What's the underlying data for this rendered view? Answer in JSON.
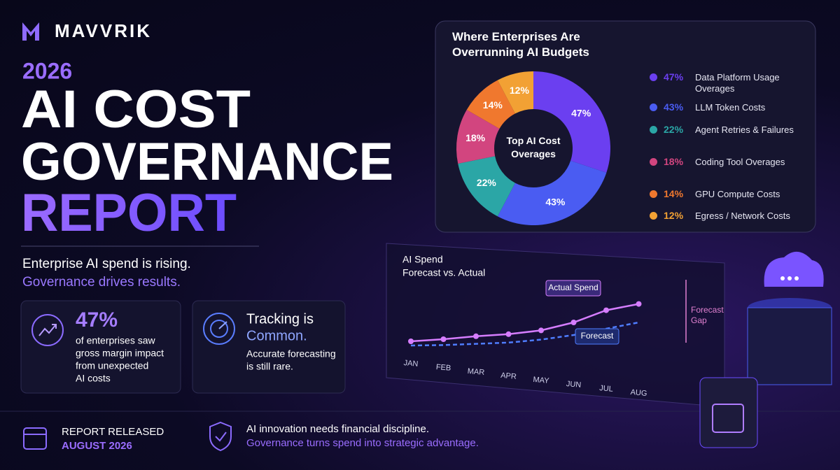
{
  "brand": "MAVVRIK",
  "hero": {
    "year": "2026",
    "title_lines": [
      "AI COST",
      "GOVERNANCE",
      "REPORT"
    ],
    "tagline": "Enterprise AI spend is rising.",
    "tagline_accent": "Governance drives results."
  },
  "cards": [
    {
      "stat": "47%",
      "lines": [
        "of enterprises saw",
        "gross margin impact",
        "from unexpected",
        "AI costs"
      ]
    },
    {
      "heading": "Tracking is",
      "accent": "Common.",
      "lines": [
        "Accurate forecasting",
        "is still rare."
      ]
    }
  ],
  "footer": {
    "release_label": "REPORT RELEASED",
    "release_date": "AUGUST 2026",
    "message": "AI innovation needs financial discipline.",
    "message_accent": "Governance turns spend into strategic advantage."
  },
  "chart_data": [
    {
      "type": "pie",
      "title": "Where Enterprises Are Overrunning AI Budgets",
      "center_label": "Top AI Cost Overages",
      "categories": [
        "Data Platform Usage Overages",
        "LLM Token Costs",
        "Agent Retries & Failures",
        "Coding Tool Overages",
        "GPU Compute Costs",
        "Egress / Network Costs"
      ],
      "values": [
        47,
        43,
        22,
        18,
        14,
        12
      ],
      "value_labels": [
        "47%",
        "43%",
        "22%",
        "18%",
        "14%",
        "12%"
      ],
      "colors": [
        "#6b3ff0",
        "#4a5cf2",
        "#2ba6a6",
        "#d2457f",
        "#f0782e",
        "#f2a134"
      ]
    },
    {
      "type": "line",
      "title": "AI Spend",
      "subtitle": "Forecast vs. Actual",
      "categories": [
        "JAN",
        "FEB",
        "MAR",
        "APR",
        "MAY",
        "JUN",
        "JUL",
        "AUG"
      ],
      "series": [
        {
          "name": "Actual Spend",
          "color": "#d67dff",
          "values": [
            10,
            15,
            21,
            26,
            33,
            45,
            62,
            72
          ]
        },
        {
          "name": "Forecast",
          "color": "#4f7dff",
          "values": [
            5,
            8,
            12,
            16,
            22,
            30,
            40,
            50
          ]
        }
      ],
      "ylim": [
        0,
        100
      ],
      "annotation": "Forecast Gap"
    }
  ]
}
